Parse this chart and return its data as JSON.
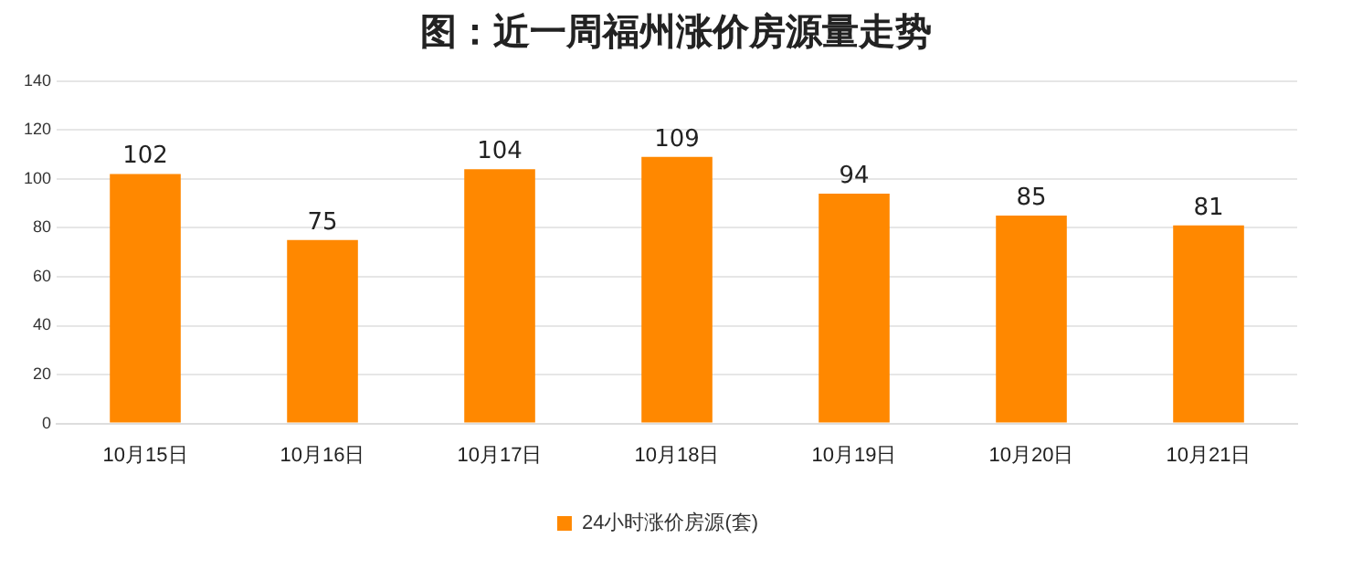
{
  "chart_data": {
    "type": "bar",
    "title": "图：近一周福州涨价房源量走势",
    "categories": [
      "10月15日",
      "10月16日",
      "10月17日",
      "10月18日",
      "10月19日",
      "10月20日",
      "10月21日"
    ],
    "series": [
      {
        "name": "24小时涨价房源(套)",
        "color": "#ff8800",
        "values": [
          102,
          75,
          104,
          109,
          94,
          85,
          81
        ]
      }
    ],
    "ylim": [
      0,
      140
    ],
    "yticks": [
      0,
      20,
      40,
      60,
      80,
      100,
      120,
      140
    ],
    "grid": "y",
    "legend": "bottom",
    "data_labels": true
  }
}
